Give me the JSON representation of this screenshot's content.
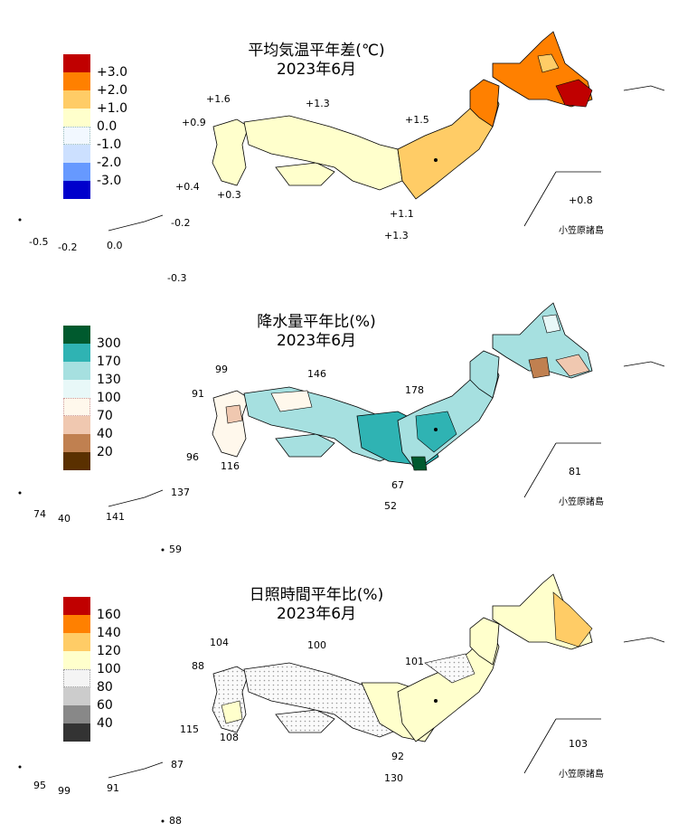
{
  "colors": {
    "temp": [
      "#c00000",
      "#ff8000",
      "#ffcc66",
      "#ffffcc",
      "#f2f8ff",
      "#cce0ff",
      "#6699ff",
      "#0000cc"
    ],
    "precip": [
      "#005a2e",
      "#2fb3b3",
      "#a6e0e0",
      "#e8f8f8",
      "#fff8ec",
      "#f0c8b0",
      "#c08050",
      "#5a3000"
    ],
    "sun": [
      "#c00000",
      "#ff8000",
      "#ffcc66",
      "#ffffcc",
      "#f4f4f4",
      "#cccccc",
      "#888888",
      "#333333"
    ]
  },
  "panels": [
    {
      "title_line1": "平均気温平年差(℃)",
      "title_line2": "2023年6月",
      "legend": [
        "+3.0",
        "+2.0",
        "+1.0",
        "0.0",
        "-1.0",
        "-2.0",
        "-3.0"
      ],
      "station_values": [
        "+1.6",
        "+1.3",
        "+0.9",
        "+1.5",
        "+0.4",
        "+0.3",
        "+1.1",
        "+1.3",
        "+0.8",
        "-0.2",
        "-0.5",
        "-0.2",
        "0.0",
        "-0.3"
      ],
      "ogasawara": "小笠原諸島"
    },
    {
      "title_line1": "降水量平年比(%)",
      "title_line2": "2023年6月",
      "legend": [
        "300",
        "170",
        "130",
        "100",
        "70",
        "40",
        "20"
      ],
      "station_values": [
        "99",
        "146",
        "91",
        "178",
        "96",
        "116",
        "67",
        "52",
        "81",
        "137",
        "74",
        "40",
        "141",
        "59"
      ],
      "ogasawara": "小笠原諸島"
    },
    {
      "title_line1": "日照時間平年比(%)",
      "title_line2": "2023年6月",
      "legend": [
        "160",
        "140",
        "120",
        "100",
        "80",
        "60",
        "40"
      ],
      "station_values": [
        "104",
        "100",
        "88",
        "101",
        "115",
        "108",
        "92",
        "130",
        "103",
        "87",
        "95",
        "99",
        "91",
        "88"
      ],
      "ogasawara": "小笠原諸島"
    }
  ]
}
